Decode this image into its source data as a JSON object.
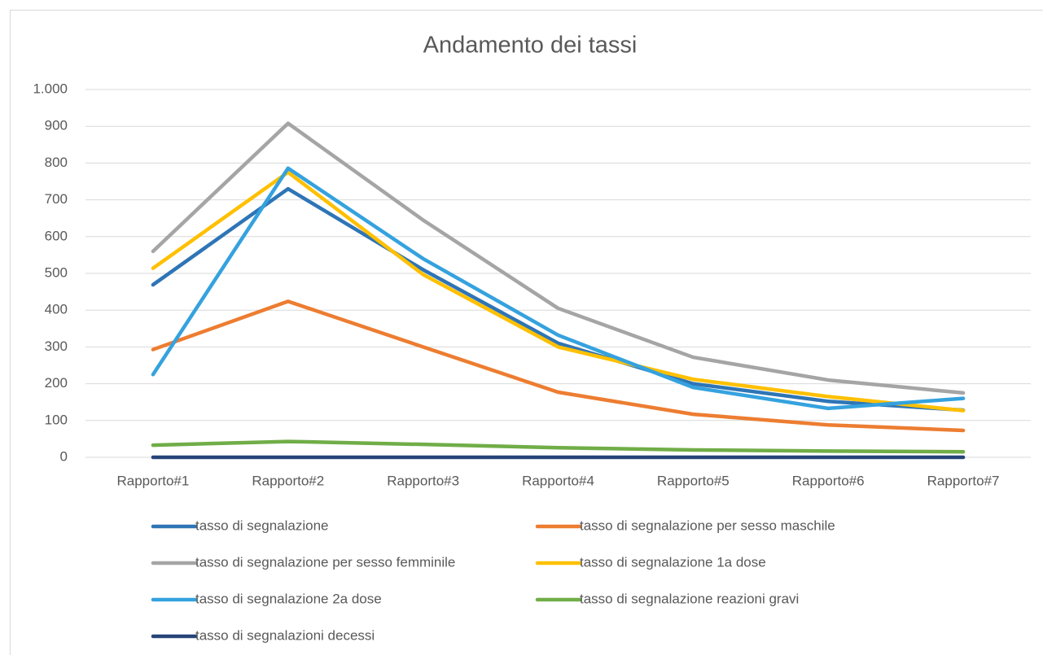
{
  "chart_data": {
    "type": "line",
    "title": "Andamento dei tassi",
    "categories": [
      "Rapporto#1",
      "Rapporto#2",
      "Rapporto#3",
      "Rapporto#4",
      "Rapporto#5",
      "Rapporto#6",
      "Rapporto#7"
    ],
    "series": [
      {
        "name": "tasso di segnalazione",
        "color": "#2e75b6",
        "values": [
          469,
          730,
          510,
          310,
          200,
          152,
          128
        ]
      },
      {
        "name": "tasso di segnalazione per sesso maschile",
        "color": "#ed7d31",
        "values": [
          293,
          424,
          300,
          177,
          117,
          88,
          73
        ]
      },
      {
        "name": "tasso di segnalazione per sesso femminile",
        "color": "#a5a5a5",
        "values": [
          560,
          908,
          645,
          405,
          272,
          210,
          175
        ]
      },
      {
        "name": "tasso di segnalazione 1a dose",
        "color": "#ffc000",
        "values": [
          514,
          775,
          497,
          300,
          212,
          165,
          127
        ]
      },
      {
        "name": "tasso di segnalazione 2a dose",
        "color": "#35a2de",
        "values": [
          225,
          786,
          540,
          332,
          190,
          133,
          160
        ]
      },
      {
        "name": "tasso di segnalazione reazioni gravi",
        "color": "#70ad47",
        "values": [
          33,
          43,
          35,
          26,
          20,
          17,
          15
        ]
      },
      {
        "name": "tasso di segnalazioni decessi",
        "color": "#264478",
        "values": [
          0,
          0,
          0,
          0,
          0,
          0,
          0
        ]
      }
    ],
    "ylim": [
      0,
      1000
    ],
    "yticks": [
      0,
      100,
      200,
      300,
      400,
      500,
      600,
      700,
      800,
      900,
      {
        "value": 1000,
        "label": "1.000"
      }
    ],
    "grid": true,
    "legend": "bottom"
  }
}
